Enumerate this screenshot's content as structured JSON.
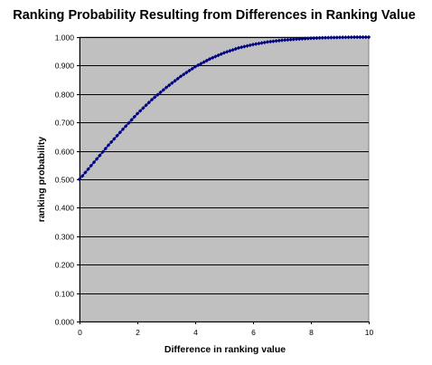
{
  "chart_data": {
    "type": "line",
    "title": "Ranking Probability Resulting from Differences in Ranking Value",
    "xlabel": "Difference in ranking value",
    "ylabel": "ranking probability",
    "xlim": [
      0,
      10
    ],
    "ylim": [
      0,
      1
    ],
    "x_ticks": [
      0,
      2,
      4,
      6,
      8,
      10
    ],
    "x_tick_labels": [
      "0",
      "2",
      "4",
      "6",
      "8",
      "10"
    ],
    "y_ticks": [
      0,
      0.1,
      0.2,
      0.3,
      0.4,
      0.5,
      0.6,
      0.7,
      0.8,
      0.9,
      1.0
    ],
    "y_tick_labels": [
      "0.000",
      "0.100",
      "0.200",
      "0.300",
      "0.400",
      "0.500",
      "0.600",
      "0.700",
      "0.800",
      "0.900",
      "1.000"
    ],
    "grid": "horizontal",
    "plot_background": "#c0c0c0",
    "series": [
      {
        "color": "#000080",
        "marker": "diamond",
        "x": [
          0,
          0.5,
          1,
          1.5,
          2,
          2.5,
          3,
          3.5,
          4,
          4.5,
          5,
          5.5,
          6,
          6.5,
          7,
          7.5,
          8,
          8.5,
          9,
          9.5,
          10
        ],
        "y": [
          0.5,
          0.56,
          0.62,
          0.676,
          0.731,
          0.78,
          0.823,
          0.862,
          0.896,
          0.923,
          0.945,
          0.962,
          0.974,
          0.983,
          0.989,
          0.993,
          0.996,
          0.998,
          0.999,
          1.0,
          1.0
        ]
      }
    ]
  }
}
